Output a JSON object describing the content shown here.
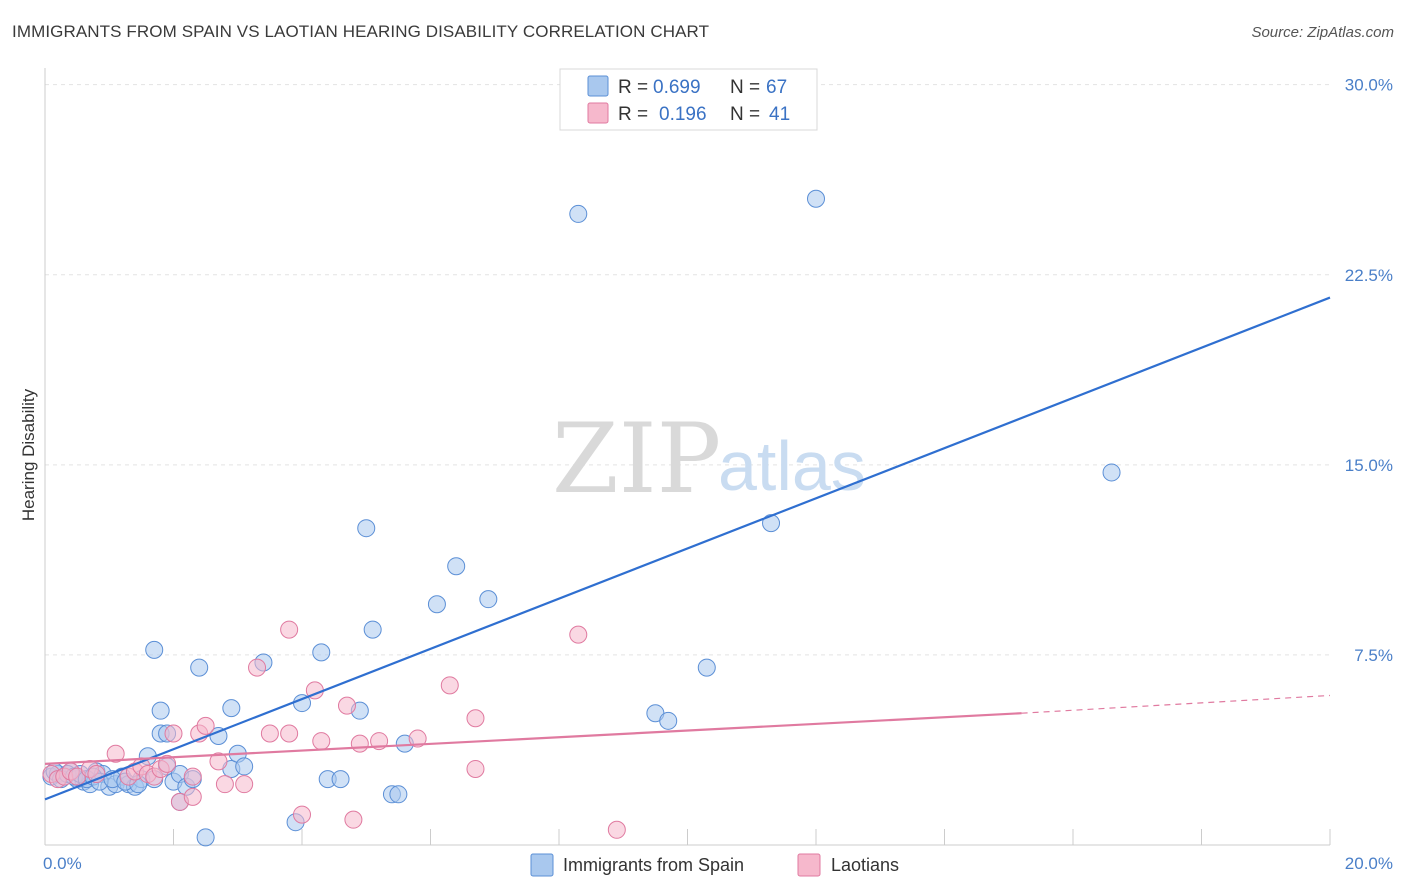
{
  "header": {
    "title": "IMMIGRANTS FROM SPAIN VS LAOTIAN HEARING DISABILITY CORRELATION CHART",
    "source": "Source: ZipAtlas.com"
  },
  "watermark": {
    "zip": "ZIP",
    "atlas": "atlas"
  },
  "legend_top": [
    {
      "r_label": "R =",
      "r_value": "0.699",
      "n_label": "N =",
      "n_value": "67",
      "color": "#a9c8ee"
    },
    {
      "r_label": "R =",
      "r_value": "0.196",
      "n_label": "N =",
      "n_value": "41",
      "color": "#f6b8cc"
    }
  ],
  "legend_bottom": [
    {
      "label": "Immigrants from Spain",
      "color": "#a9c8ee"
    },
    {
      "label": "Laotians",
      "color": "#f6b8cc"
    }
  ],
  "chart_data": {
    "type": "scatter",
    "title": "IMMIGRANTS FROM SPAIN VS LAOTIAN HEARING DISABILITY CORRELATION CHART",
    "xlabel": "",
    "ylabel": "Hearing Disability",
    "xlim": [
      0,
      20
    ],
    "ylim": [
      0,
      30.5
    ],
    "x_tick_labels": [
      "0.0%",
      "20.0%"
    ],
    "y_ticks": [
      7.5,
      15.0,
      22.5,
      30.0
    ],
    "y_tick_labels": [
      "7.5%",
      "15.0%",
      "22.5%",
      "30.0%"
    ],
    "grid": true,
    "legend_placement": "top-center",
    "series": [
      {
        "name": "Immigrants from Spain",
        "color": "#5b8fd6",
        "fill": "#a9c8ee",
        "R": 0.699,
        "N": 67,
        "trend": {
          "x0": 0.0,
          "y0": 1.8,
          "x1": 20.0,
          "y1": 21.6
        },
        "points": [
          [
            0.1,
            2.7
          ],
          [
            0.2,
            2.8
          ],
          [
            0.3,
            2.7
          ],
          [
            0.4,
            2.9
          ],
          [
            0.5,
            2.6
          ],
          [
            0.6,
            2.5
          ],
          [
            0.7,
            2.4
          ],
          [
            0.8,
            2.9
          ],
          [
            0.9,
            2.8
          ],
          [
            1.0,
            2.3
          ],
          [
            1.1,
            2.4
          ],
          [
            1.2,
            2.7
          ],
          [
            1.3,
            2.4
          ],
          [
            1.4,
            2.3
          ],
          [
            1.5,
            2.6
          ],
          [
            1.6,
            3.5
          ],
          [
            1.7,
            2.6
          ],
          [
            1.8,
            4.4
          ],
          [
            1.7,
            7.7
          ],
          [
            1.8,
            5.3
          ],
          [
            1.9,
            4.4
          ],
          [
            1.9,
            3.1
          ],
          [
            2.0,
            2.5
          ],
          [
            2.1,
            2.8
          ],
          [
            2.1,
            1.7
          ],
          [
            2.2,
            2.3
          ],
          [
            2.3,
            2.6
          ],
          [
            2.4,
            7.0
          ],
          [
            2.5,
            0.3
          ],
          [
            2.7,
            4.3
          ],
          [
            2.9,
            5.4
          ],
          [
            2.9,
            3.0
          ],
          [
            3.0,
            3.6
          ],
          [
            3.1,
            3.1
          ],
          [
            3.4,
            7.2
          ],
          [
            3.9,
            0.9
          ],
          [
            4.0,
            5.6
          ],
          [
            4.3,
            7.6
          ],
          [
            4.4,
            2.6
          ],
          [
            4.6,
            2.6
          ],
          [
            4.9,
            5.3
          ],
          [
            5.0,
            12.5
          ],
          [
            5.1,
            8.5
          ],
          [
            5.4,
            2.0
          ],
          [
            5.5,
            2.0
          ],
          [
            5.6,
            4.0
          ],
          [
            6.1,
            9.5
          ],
          [
            6.4,
            11.0
          ],
          [
            6.9,
            9.7
          ],
          [
            8.3,
            24.9
          ],
          [
            9.5,
            5.2
          ],
          [
            9.7,
            4.9
          ],
          [
            10.3,
            7.0
          ],
          [
            11.3,
            12.7
          ],
          [
            12.0,
            25.5
          ],
          [
            16.6,
            14.7
          ],
          [
            0.15,
            2.9
          ],
          [
            0.25,
            2.6
          ],
          [
            0.35,
            2.8
          ],
          [
            0.45,
            2.7
          ],
          [
            0.55,
            2.8
          ],
          [
            0.65,
            2.6
          ],
          [
            0.75,
            2.7
          ],
          [
            0.85,
            2.5
          ],
          [
            1.05,
            2.6
          ],
          [
            1.25,
            2.5
          ],
          [
            1.45,
            2.4
          ]
        ]
      },
      {
        "name": "Laotians",
        "color": "#e07aa0",
        "fill": "#f6b8cc",
        "R": 0.196,
        "N": 41,
        "trend": {
          "x0": 0.0,
          "y0": 3.2,
          "x1": 15.2,
          "y1": 5.2
        },
        "trend_dashed": {
          "x0": 15.2,
          "y0": 5.2,
          "x1": 20.0,
          "y1": 5.9
        },
        "points": [
          [
            0.1,
            2.8
          ],
          [
            0.2,
            2.6
          ],
          [
            0.3,
            2.7
          ],
          [
            0.4,
            2.9
          ],
          [
            0.5,
            2.7
          ],
          [
            0.7,
            3.0
          ],
          [
            0.8,
            2.8
          ],
          [
            1.1,
            3.6
          ],
          [
            1.3,
            2.7
          ],
          [
            1.4,
            2.9
          ],
          [
            1.5,
            3.1
          ],
          [
            1.6,
            2.8
          ],
          [
            1.7,
            2.7
          ],
          [
            1.8,
            3.0
          ],
          [
            1.9,
            3.2
          ],
          [
            2.0,
            4.4
          ],
          [
            2.1,
            1.7
          ],
          [
            2.3,
            2.7
          ],
          [
            2.3,
            1.9
          ],
          [
            2.4,
            4.4
          ],
          [
            2.5,
            4.7
          ],
          [
            2.7,
            3.3
          ],
          [
            2.8,
            2.4
          ],
          [
            3.1,
            2.4
          ],
          [
            3.3,
            7.0
          ],
          [
            3.5,
            4.4
          ],
          [
            3.8,
            4.4
          ],
          [
            3.8,
            8.5
          ],
          [
            4.0,
            1.2
          ],
          [
            4.2,
            6.1
          ],
          [
            4.3,
            4.1
          ],
          [
            4.7,
            5.5
          ],
          [
            4.8,
            1.0
          ],
          [
            4.9,
            4.0
          ],
          [
            5.2,
            4.1
          ],
          [
            5.8,
            4.2
          ],
          [
            6.3,
            6.3
          ],
          [
            6.7,
            5.0
          ],
          [
            6.7,
            3.0
          ],
          [
            8.3,
            8.3
          ],
          [
            8.9,
            0.6
          ]
        ]
      }
    ]
  }
}
